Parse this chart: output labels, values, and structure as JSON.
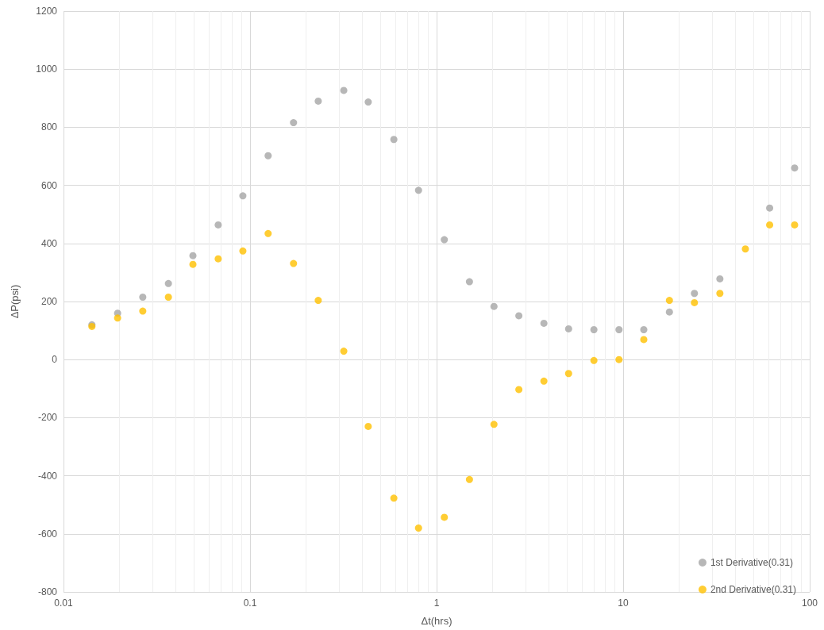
{
  "chart_data": {
    "type": "scatter",
    "xlabel": "Δt(hrs)",
    "ylabel": "ΔP(psi)",
    "x": [
      0.0142,
      0.0195,
      0.0266,
      0.0365,
      0.0494,
      0.0675,
      0.0915,
      0.125,
      0.171,
      0.232,
      0.318,
      0.43,
      0.59,
      0.8,
      1.1,
      1.5,
      2.03,
      2.76,
      3.76,
      5.1,
      6.97,
      9.5,
      12.9,
      17.7,
      24.1,
      33,
      45.2,
      61,
      83
    ],
    "series": [
      {
        "name": "1st Derivative(0.31)",
        "color": "#a5a5a5",
        "values": [
          120,
          160,
          215,
          262,
          358,
          464,
          564,
          702,
          816,
          890,
          927,
          887,
          758,
          583,
          413,
          268,
          183,
          151,
          125,
          106,
          103,
          103,
          103,
          164,
          228,
          278,
          null,
          522,
          660
        ]
      },
      {
        "name": "2nd Derivative(0.31)",
        "color": "#ffc000",
        "values": [
          114,
          143,
          167,
          215,
          328,
          347,
          374,
          434,
          331,
          204,
          29,
          -230,
          -477,
          -580,
          -543,
          -413,
          -223,
          -103,
          -74,
          -48,
          -3,
          0,
          69,
          204,
          196,
          228,
          381,
          464,
          464
        ]
      }
    ],
    "xlim": [
      0.01,
      100
    ],
    "xticks": [
      0.01,
      0.1,
      1,
      10,
      100
    ],
    "ylim": [
      -800,
      1200
    ],
    "yticks": [
      -800,
      -600,
      -400,
      -200,
      0,
      200,
      400,
      600,
      800,
      1000,
      1200
    ],
    "log": "x",
    "grid": true,
    "legend": "bottom right",
    "marker": "circle"
  }
}
